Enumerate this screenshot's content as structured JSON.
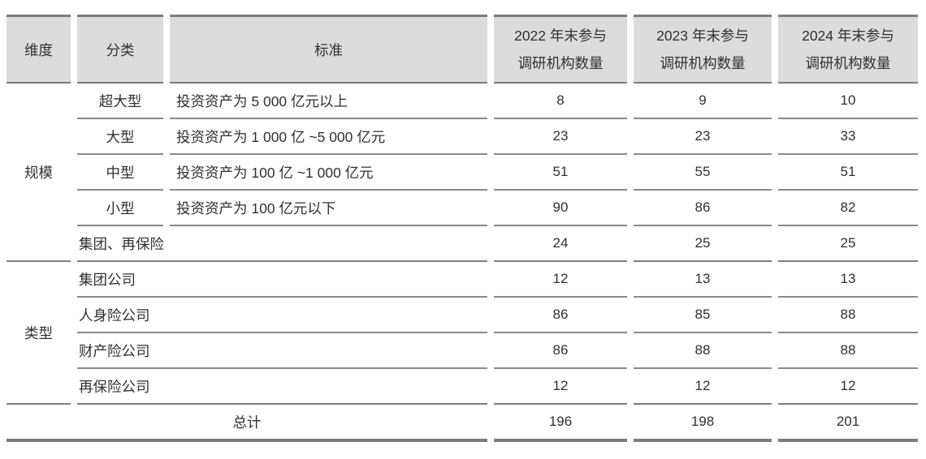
{
  "colors": {
    "header_bg": "#dcdcdc",
    "rule_line": "#7d7d7d",
    "row_line": "#8a8a8a",
    "text": "#303030"
  },
  "header": {
    "dimension": "维度",
    "category": "分类",
    "standard": "标准",
    "year_cols": [
      {
        "line1": "2022 年末参与",
        "line2": "调研机构数量"
      },
      {
        "line1": "2023 年末参与",
        "line2": "调研机构数量"
      },
      {
        "line1": "2024 年末参与",
        "line2": "调研机构数量"
      }
    ]
  },
  "groups": [
    {
      "dimension": "规模",
      "rows": [
        {
          "category": "超大型",
          "standard": "投资资产为 5 000 亿元以上",
          "values": [
            "8",
            "9",
            "10"
          ]
        },
        {
          "category": "大型",
          "standard": "投资资产为 1 000 亿 ~5 000 亿元",
          "values": [
            "23",
            "23",
            "33"
          ]
        },
        {
          "category": "中型",
          "standard": "投资资产为 100 亿 ~1 000 亿元",
          "values": [
            "51",
            "55",
            "51"
          ]
        },
        {
          "category": "小型",
          "standard": "投资资产为 100 亿元以下",
          "values": [
            "90",
            "86",
            "82"
          ]
        },
        {
          "merged": "集团、再保险",
          "values": [
            "24",
            "25",
            "25"
          ]
        }
      ]
    },
    {
      "dimension": "类型",
      "rows": [
        {
          "merged": "集团公司",
          "values": [
            "12",
            "13",
            "13"
          ]
        },
        {
          "merged": "人身险公司",
          "values": [
            "86",
            "85",
            "88"
          ]
        },
        {
          "merged": "财产险公司",
          "values": [
            "86",
            "88",
            "88"
          ]
        },
        {
          "merged": "再保险公司",
          "values": [
            "12",
            "12",
            "12"
          ]
        }
      ]
    }
  ],
  "total": {
    "label": "总计",
    "values": [
      "196",
      "198",
      "201"
    ]
  }
}
